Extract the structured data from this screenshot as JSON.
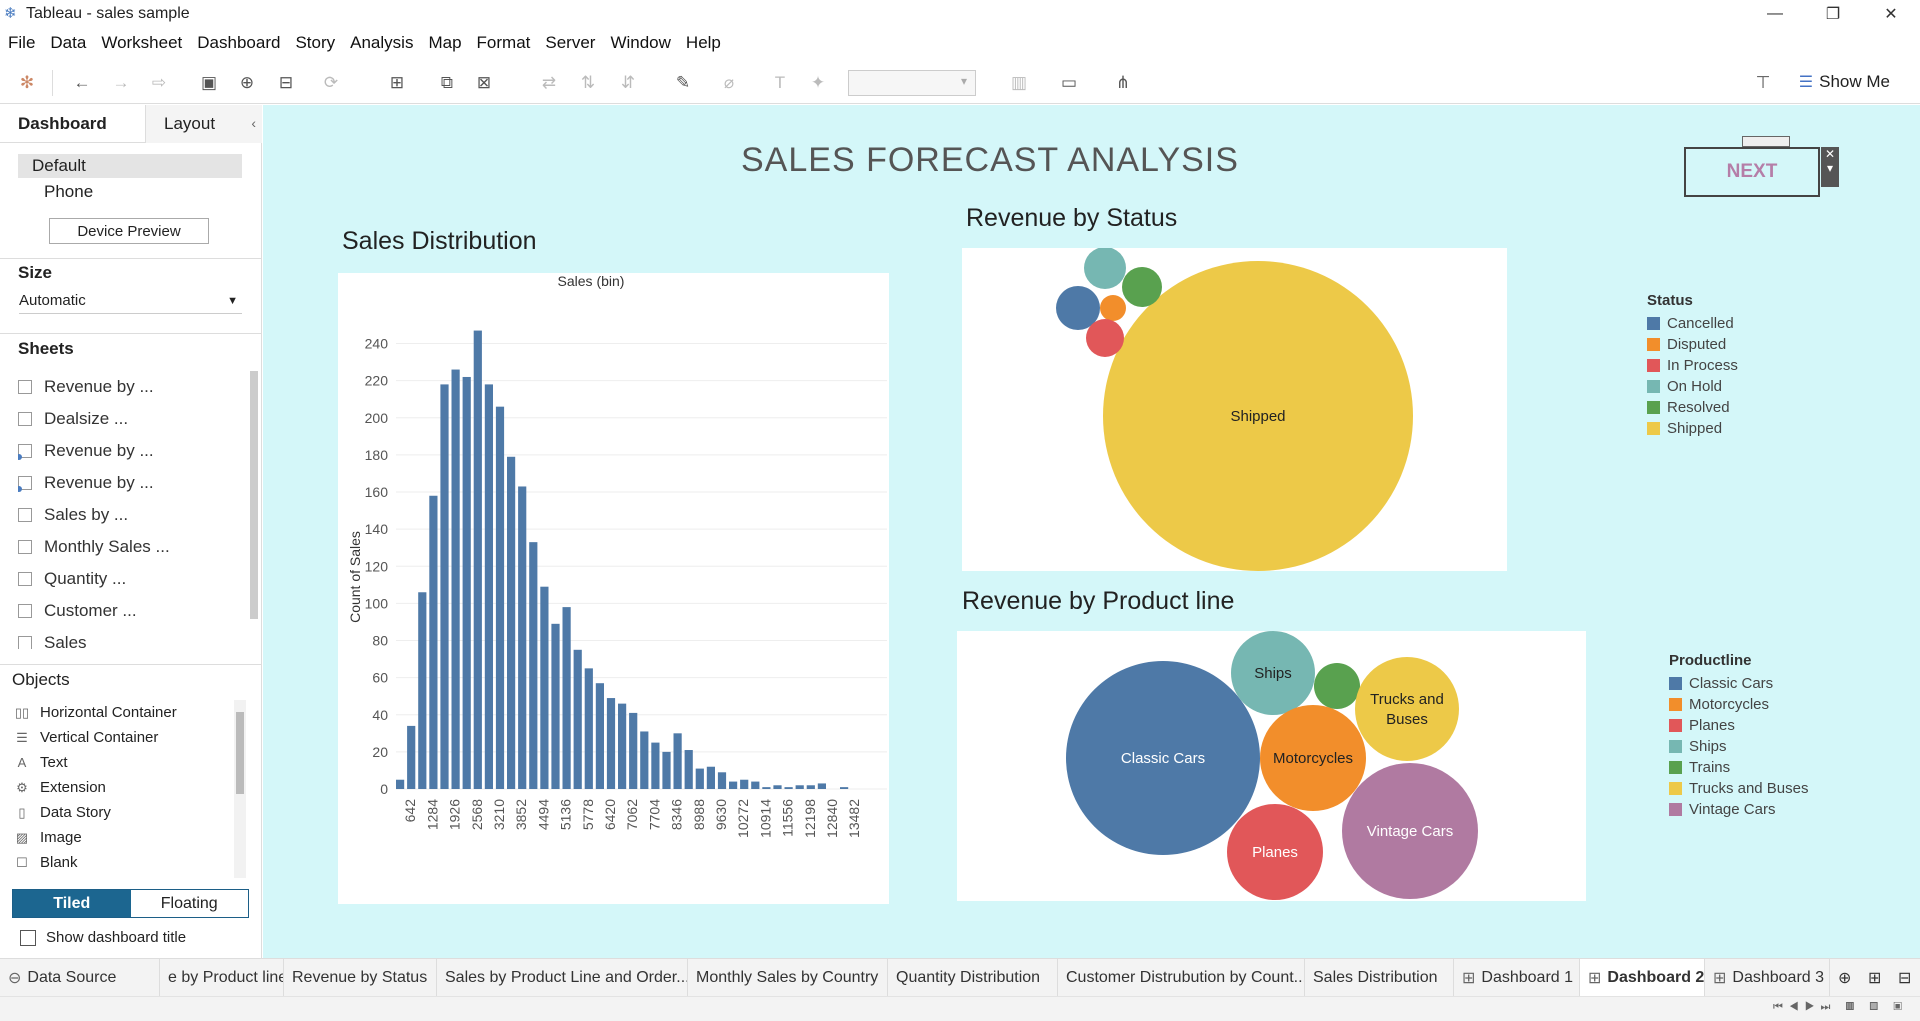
{
  "window": {
    "title": "Tableau - sales sample"
  },
  "menu": [
    "File",
    "Data",
    "Worksheet",
    "Dashboard",
    "Story",
    "Analysis",
    "Map",
    "Format",
    "Server",
    "Window",
    "Help"
  ],
  "toolbar": {
    "show_me": "Show Me"
  },
  "left_panel": {
    "tabs": [
      "Dashboard",
      "Layout"
    ],
    "devices": {
      "default": "Default",
      "phone": "Phone",
      "preview_button": "Device Preview"
    },
    "size": {
      "title": "Size",
      "value": "Automatic"
    },
    "sheets": {
      "title": "Sheets",
      "items": [
        "Revenue by ...",
        "Dealsize ...",
        "Revenue by ...",
        "Revenue by ...",
        "Sales by ...",
        "Monthly Sales ...",
        "Quantity ...",
        "Customer ...",
        "Sales"
      ]
    },
    "objects": {
      "title": "Objects",
      "items": [
        "Horizontal Container",
        "Vertical Container",
        "Text",
        "Extension",
        "Data Story",
        "Image",
        "Blank"
      ]
    },
    "tiled": "Tiled",
    "floating": "Floating",
    "show_title": "Show dashboard title"
  },
  "dashboard": {
    "title": "SALES FORECAST ANALYSIS",
    "next_button": "NEXT",
    "hist_title": "Sales Distribution",
    "status_title": "Revenue by Status",
    "product_title": "Revenue by Product line"
  },
  "chart_data": [
    {
      "type": "bar",
      "title": "Sales (bin)",
      "ylabel": "Count of Sales",
      "ylim": [
        0,
        250
      ],
      "yticks": [
        0,
        20,
        40,
        60,
        80,
        100,
        120,
        140,
        160,
        180,
        200,
        220,
        240
      ],
      "xtick_labels": [
        "642",
        "1284",
        "1926",
        "2568",
        "3210",
        "3852",
        "4494",
        "5136",
        "5778",
        "6420",
        "7062",
        "7704",
        "8346",
        "8988",
        "9630",
        "10272",
        "10914",
        "11556",
        "12198",
        "12840",
        "13482"
      ],
      "values": [
        5,
        34,
        106,
        158,
        218,
        226,
        222,
        247,
        218,
        206,
        179,
        163,
        133,
        109,
        89,
        98,
        75,
        65,
        57,
        49,
        46,
        41,
        31,
        25,
        20,
        30,
        21,
        11,
        12,
        9,
        4,
        5,
        4,
        1,
        2,
        1,
        2,
        2,
        3,
        0,
        1,
        0,
        0,
        0,
        0,
        1
      ]
    },
    {
      "type": "bubble",
      "title": "Revenue by Status",
      "legend_title": "Status",
      "categories": [
        "Cancelled",
        "Disputed",
        "In Process",
        "On Hold",
        "Resolved",
        "Shipped"
      ],
      "colors": [
        "#4e79a7",
        "#f28e2b",
        "#e15759",
        "#76b7b2",
        "#59a14f",
        "#edc948"
      ],
      "labels_shown": [
        "Shipped"
      ]
    },
    {
      "type": "bubble",
      "title": "Revenue by Product line",
      "legend_title": "Productline",
      "categories": [
        "Classic Cars",
        "Motorcycles",
        "Planes",
        "Ships",
        "Trains",
        "Trucks and Buses",
        "Vintage Cars"
      ],
      "colors": [
        "#4e79a7",
        "#f28e2b",
        "#e15759",
        "#76b7b2",
        "#59a14f",
        "#edc948",
        "#b07aa1"
      ],
      "labels_shown": [
        "Classic Cars",
        "Motorcycles",
        "Planes",
        "Ships",
        "Trucks and Buses",
        "Vintage Cars"
      ]
    }
  ],
  "tabs": [
    "Data Source",
    "e by Product line",
    "Revenue by Status",
    "Sales by Product Line and Order...",
    "Monthly Sales by Country",
    "Quantity Distribution",
    "Customer Distrubution by Count...",
    "Sales Distribution",
    "Dashboard 1",
    "Dashboard 2",
    "Dashboard 3"
  ],
  "active_tab": "Dashboard 2"
}
